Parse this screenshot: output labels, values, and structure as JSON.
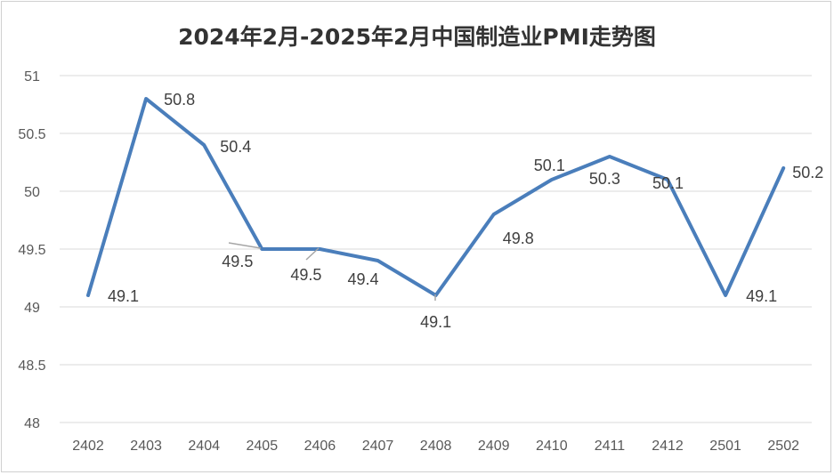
{
  "chart_data": {
    "type": "line",
    "title": "2024年2月-2025年2月中国制造业PMI走势图",
    "categories": [
      "2402",
      "2403",
      "2404",
      "2405",
      "2406",
      "2407",
      "2408",
      "2409",
      "2410",
      "2411",
      "2412",
      "2501",
      "2502"
    ],
    "series": [
      {
        "values": [
          49.1,
          50.8,
          50.4,
          49.5,
          49.5,
          49.4,
          49.1,
          49.8,
          50.1,
          50.3,
          50.1,
          49.1,
          50.2
        ]
      }
    ],
    "data_labels": [
      "49.1",
      "50.8",
      "50.4",
      "49.5",
      "49.5",
      "49.4",
      "49.1",
      "49.8",
      "50.1",
      "50.3",
      "50.1",
      "49.1",
      "50.2"
    ],
    "y_ticks": [
      "48",
      "48.5",
      "49",
      "49.5",
      "50",
      "50.5",
      "51"
    ],
    "ylim": [
      48,
      51
    ],
    "xlabel": "",
    "ylabel": "",
    "grid": true,
    "legend": "none",
    "line_color": "#4a7ebb"
  }
}
